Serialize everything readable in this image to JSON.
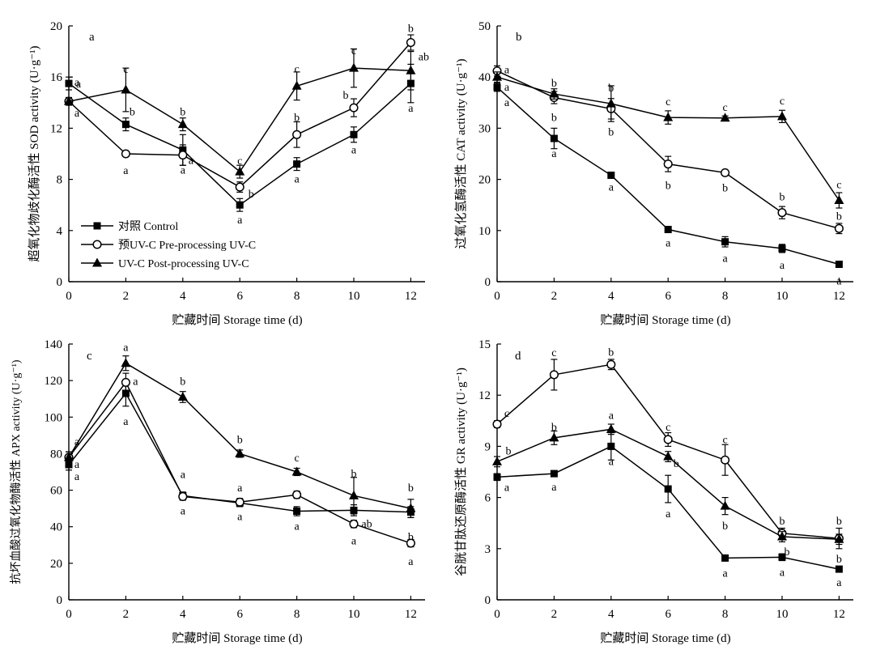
{
  "chart_data": [
    {
      "type": "line",
      "panel_label": "a",
      "xlabel": "贮藏时间 Storage time (d)",
      "ylabel": "超氧化物歧化酶活性 SOD activity (U·g⁻¹)",
      "x": [
        0,
        2,
        4,
        6,
        8,
        10,
        12
      ],
      "xlim": [
        0,
        12.5
      ],
      "ylim": [
        0,
        20
      ],
      "xticks": [
        0,
        2,
        4,
        6,
        8,
        10,
        12
      ],
      "yticks": [
        0,
        4,
        8,
        12,
        16,
        20
      ],
      "legend": "bottom-left",
      "series": [
        {
          "name": "对照 Control",
          "marker": "square",
          "values": [
            15.5,
            12.3,
            10.3,
            6.0,
            9.2,
            11.5,
            15.5
          ],
          "errors": [
            0.5,
            0.5,
            1.2,
            0.5,
            0.5,
            0.6,
            1.5
          ],
          "letters": [
            "a",
            "b",
            "a",
            "a",
            "a",
            "a",
            "a"
          ]
        },
        {
          "name": "预UV-C Pre-processing UV-C",
          "marker": "circle",
          "values": [
            14.1,
            10.0,
            9.9,
            7.4,
            11.5,
            13.6,
            18.7
          ],
          "errors": [
            0.3,
            0.2,
            0.8,
            0.4,
            1.0,
            0.7,
            0.6
          ],
          "letters": [
            "a",
            "a",
            "a",
            "b",
            "b",
            "b",
            "b"
          ]
        },
        {
          "name": "UV-C Post-processing UV-C",
          "marker": "triangle",
          "values": [
            14.1,
            15.0,
            12.3,
            8.6,
            15.3,
            16.7,
            16.5
          ],
          "errors": [
            0.3,
            1.7,
            0.5,
            0.5,
            1.1,
            1.5,
            1.5
          ],
          "letters": [
            "a",
            "c",
            "b",
            "c",
            "c",
            "c",
            "ab"
          ]
        }
      ]
    },
    {
      "type": "line",
      "panel_label": "b",
      "xlabel": "贮藏时间 Storage time (d)",
      "ylabel": "过氧化氢酶活性 CAT activity (U·g⁻¹)",
      "x": [
        0,
        2,
        4,
        6,
        8,
        10,
        12
      ],
      "xlim": [
        0,
        12.5
      ],
      "ylim": [
        0,
        50
      ],
      "xticks": [
        0,
        2,
        4,
        6,
        8,
        10,
        12
      ],
      "yticks": [
        0,
        10,
        20,
        30,
        40,
        50
      ],
      "series": [
        {
          "name": "对照 Control",
          "marker": "square",
          "values": [
            38.0,
            28.0,
            20.8,
            10.2,
            7.8,
            6.5,
            3.4
          ],
          "errors": [
            0.8,
            2.0,
            0.3,
            0.3,
            1.0,
            0.8,
            0.3
          ],
          "letters": [
            "a",
            "a",
            "a",
            "a",
            "a",
            "a",
            "a"
          ]
        },
        {
          "name": "预UV-C Pre-processing UV-C",
          "marker": "circle",
          "values": [
            41.2,
            36.0,
            33.8,
            23.0,
            21.3,
            13.5,
            10.4
          ],
          "errors": [
            1.0,
            1.2,
            2.0,
            1.5,
            0.5,
            1.2,
            1.0
          ],
          "letters": [
            "a",
            "b",
            "b",
            "b",
            "b",
            "b",
            "b"
          ]
        },
        {
          "name": "UV-C Post-processing UV-C",
          "marker": "triangle",
          "values": [
            40.0,
            36.7,
            34.8,
            32.1,
            32.0,
            32.3,
            15.9
          ],
          "errors": [
            1.0,
            1.0,
            3.5,
            1.3,
            0.4,
            1.2,
            1.5
          ],
          "letters": [
            "a",
            "b",
            "b",
            "c",
            "c",
            "c",
            "c"
          ]
        }
      ]
    },
    {
      "type": "line",
      "panel_label": "c",
      "xlabel": "贮藏时间 Storage time (d)",
      "ylabel": "抗坏血酸过氧化物酶活性 APX activity (U·g⁻¹)",
      "x": [
        0,
        2,
        4,
        6,
        8,
        10,
        12
      ],
      "xlim": [
        0,
        12.5
      ],
      "ylim": [
        0,
        140
      ],
      "xticks": [
        0,
        2,
        4,
        6,
        8,
        10,
        12
      ],
      "yticks": [
        0,
        20,
        40,
        60,
        80,
        100,
        120,
        140
      ],
      "series": [
        {
          "name": "对照 Control",
          "marker": "square",
          "values": [
            74,
            113,
            57,
            53,
            48.5,
            49,
            48
          ],
          "errors": [
            3,
            7,
            2,
            2,
            2.5,
            3,
            3
          ],
          "letters": [
            "a",
            "a",
            "a",
            "a",
            "a",
            "ab",
            "b"
          ]
        },
        {
          "name": "预UV-C Pre-processing UV-C",
          "marker": "circle",
          "values": [
            78,
            119,
            56.5,
            53.5,
            57.5,
            41.5,
            31
          ],
          "errors": [
            3,
            5,
            2,
            2,
            2,
            2,
            2
          ],
          "letters": [
            "a",
            "a",
            "a",
            "a",
            "b",
            "a",
            "a"
          ]
        },
        {
          "name": "UV-C Post-processing UV-C",
          "marker": "triangle",
          "values": [
            78,
            129.5,
            111,
            80,
            70,
            57,
            50
          ],
          "errors": [
            3,
            4,
            3,
            2,
            2,
            10,
            5
          ],
          "letters": [
            "a",
            "a",
            "b",
            "b",
            "c",
            "b",
            "b"
          ]
        }
      ]
    },
    {
      "type": "line",
      "panel_label": "d",
      "xlabel": "贮藏时间 Storage time (d)",
      "ylabel": "谷胱甘肽还原酶活性 GR activity (U·g⁻¹)",
      "x": [
        0,
        2,
        4,
        6,
        8,
        10,
        12
      ],
      "xlim": [
        0,
        12.5
      ],
      "ylim": [
        0,
        15
      ],
      "xticks": [
        0,
        2,
        4,
        6,
        8,
        10,
        12
      ],
      "yticks": [
        0,
        3,
        6,
        9,
        12,
        15
      ],
      "series": [
        {
          "name": "对照 Control",
          "marker": "square",
          "values": [
            7.2,
            7.4,
            9.0,
            6.5,
            2.45,
            2.5,
            1.8
          ],
          "errors": [
            0.2,
            0.1,
            0.8,
            0.8,
            0.1,
            0.2,
            0.1
          ],
          "letters": [
            "a",
            "a",
            "a",
            "a",
            "a",
            "a",
            "a"
          ]
        },
        {
          "name": "预UV-C Pre-processing UV-C",
          "marker": "circle",
          "values": [
            10.3,
            13.2,
            13.8,
            9.4,
            8.2,
            3.9,
            3.6
          ],
          "errors": [
            0.2,
            0.9,
            0.3,
            0.4,
            0.9,
            0.3,
            0.6
          ],
          "letters": [
            "c",
            "c",
            "b",
            "c",
            "c",
            "b",
            "b"
          ]
        },
        {
          "name": "UV-C Post-processing UV-C",
          "marker": "triangle",
          "values": [
            8.1,
            9.5,
            10.0,
            8.4,
            5.5,
            3.7,
            3.55
          ],
          "errors": [
            0.3,
            0.4,
            0.3,
            0.3,
            0.5,
            0.3,
            0.3
          ],
          "letters": [
            "b",
            "b",
            "a",
            "b",
            "b",
            "b",
            "b"
          ]
        }
      ]
    }
  ]
}
